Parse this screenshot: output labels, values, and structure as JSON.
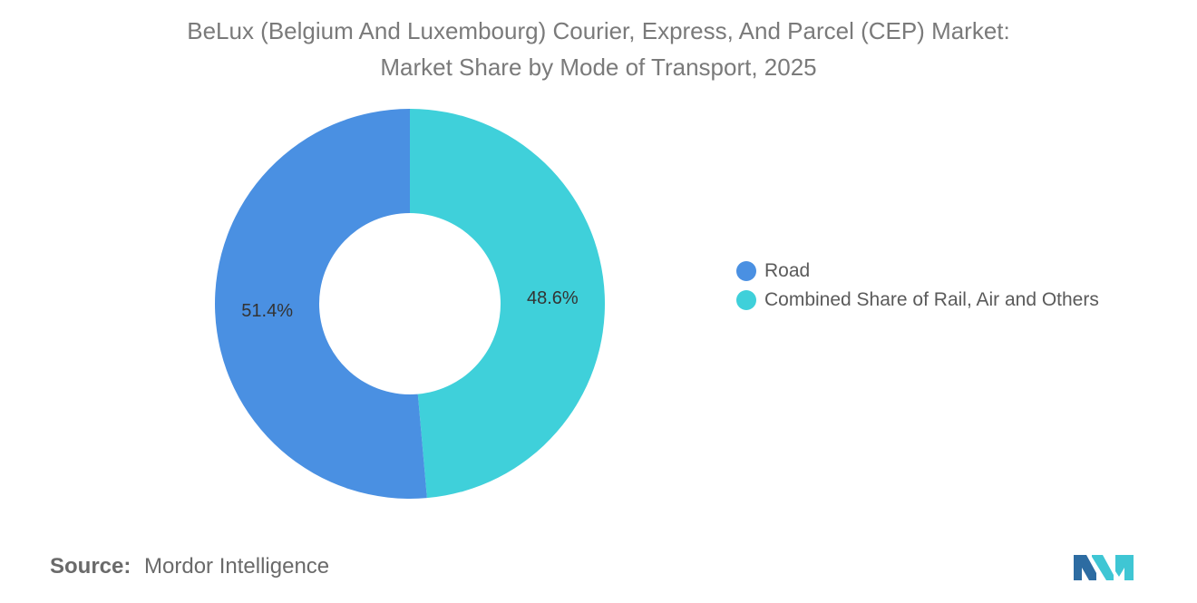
{
  "title_line1": "BeLux (Belgium And Luxembourg) Courier, Express, And Parcel (CEP) Market:",
  "title_line2": "Market Share by Mode of Transport, 2025",
  "chart_data": {
    "type": "pie",
    "style": "donut",
    "title": "BeLux (Belgium And Luxembourg) Courier, Express, And Parcel (CEP) Market: Market Share by Mode of Transport, 2025",
    "categories": [
      "Road",
      "Combined Share of Rail, Air and Others"
    ],
    "values": [
      51.4,
      48.6
    ],
    "data_labels": [
      "51.4%",
      "48.6%"
    ],
    "colors": [
      "#4a90e2",
      "#3fd0da"
    ],
    "legend_position": "right"
  },
  "source": {
    "label": "Source:",
    "value": "Mordor Intelligence"
  },
  "logo": {
    "icon": "mordor-intelligence-logo",
    "colors": [
      "#2d6ca2",
      "#3fc6d4"
    ]
  }
}
